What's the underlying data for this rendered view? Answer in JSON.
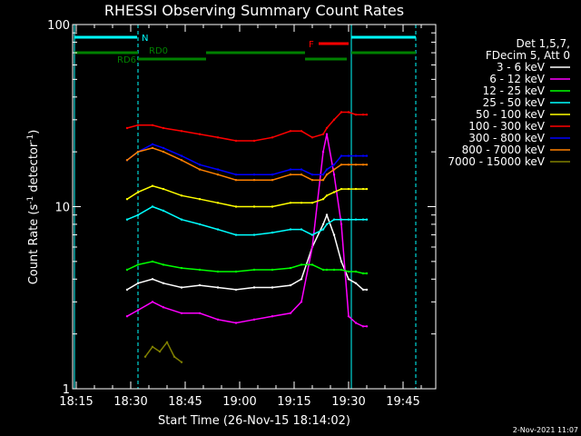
{
  "chart_data": {
    "type": "line",
    "title": "RHESSI Observing Summary Count Rates",
    "xlabel": "Start Time (26-Nov-15 18:14:02)",
    "ylabel_main": "Count Rate (s",
    "ylabel_sup1": "-1",
    "ylabel_mid": " detector",
    "ylabel_sup2": "-1",
    "ylabel_end": ")",
    "x_ticks": [
      "18:15",
      "18:30",
      "18:45",
      "19:00",
      "19:15",
      "19:30",
      "19:45"
    ],
    "x_tick_minutes": [
      1,
      16,
      31,
      46,
      61,
      76,
      91
    ],
    "xlim_minutes": [
      0,
      100
    ],
    "y_scale": "log",
    "ylim": [
      1,
      100
    ],
    "y_ticks": [
      "1",
      "10",
      "100"
    ],
    "y_tick_values": [
      1,
      10,
      100
    ],
    "legend_header": [
      "Det 1,5,7,",
      "FDecim 5, Att 0"
    ],
    "series": [
      {
        "name": "3 - 6 keV",
        "color": "#ffffff",
        "x": [
          15,
          18,
          22,
          25,
          30,
          35,
          40,
          45,
          50,
          55,
          60,
          63,
          66,
          69,
          70,
          72,
          74,
          76,
          78,
          80,
          81
        ],
        "y": [
          3.5,
          3.8,
          4.0,
          3.8,
          3.6,
          3.7,
          3.6,
          3.5,
          3.6,
          3.6,
          3.7,
          4.0,
          6.0,
          8.0,
          9.0,
          7.0,
          5.0,
          4.0,
          3.8,
          3.5,
          3.5
        ]
      },
      {
        "name": "6 - 12 keV",
        "color": "#ff00ff",
        "x": [
          15,
          18,
          22,
          25,
          30,
          35,
          40,
          45,
          50,
          55,
          60,
          63,
          66,
          69,
          70,
          72,
          74,
          76,
          78,
          80,
          81
        ],
        "y": [
          2.5,
          2.7,
          3.0,
          2.8,
          2.6,
          2.6,
          2.4,
          2.3,
          2.4,
          2.5,
          2.6,
          3.0,
          6.0,
          20.0,
          25.0,
          15.0,
          8.0,
          2.5,
          2.3,
          2.2,
          2.2
        ]
      },
      {
        "name": "12 - 25 keV",
        "color": "#00ff00",
        "x": [
          15,
          18,
          22,
          25,
          30,
          35,
          40,
          45,
          50,
          55,
          60,
          63,
          66,
          69,
          70,
          72,
          74,
          76,
          78,
          80,
          81
        ],
        "y": [
          4.5,
          4.8,
          5.0,
          4.8,
          4.6,
          4.5,
          4.4,
          4.4,
          4.5,
          4.5,
          4.6,
          4.8,
          4.8,
          4.5,
          4.5,
          4.5,
          4.5,
          4.4,
          4.4,
          4.3,
          4.3
        ]
      },
      {
        "name": "25 - 50 keV",
        "color": "#00ffff",
        "x": [
          15,
          18,
          22,
          25,
          30,
          35,
          40,
          45,
          50,
          55,
          60,
          63,
          66,
          69,
          70,
          72,
          74,
          76,
          78,
          80,
          81
        ],
        "y": [
          8.5,
          9.0,
          10.0,
          9.5,
          8.5,
          8.0,
          7.5,
          7.0,
          7.0,
          7.2,
          7.5,
          7.5,
          7.0,
          7.5,
          8.0,
          8.5,
          8.5,
          8.5,
          8.5,
          8.5,
          8.5
        ]
      },
      {
        "name": "50 - 100 keV",
        "color": "#ffff00",
        "x": [
          15,
          18,
          22,
          25,
          30,
          35,
          40,
          45,
          50,
          55,
          60,
          63,
          66,
          69,
          70,
          72,
          74,
          76,
          78,
          80,
          81
        ],
        "y": [
          11.0,
          12.0,
          13.0,
          12.5,
          11.5,
          11.0,
          10.5,
          10.0,
          10.0,
          10.0,
          10.5,
          10.5,
          10.5,
          11.0,
          11.5,
          12.0,
          12.5,
          12.5,
          12.5,
          12.5,
          12.5
        ]
      },
      {
        "name": "100 - 300 keV",
        "color": "#ff0000",
        "x": [
          15,
          18,
          22,
          25,
          30,
          35,
          40,
          45,
          50,
          55,
          60,
          63,
          66,
          69,
          70,
          72,
          74,
          76,
          78,
          80,
          81
        ],
        "y": [
          27,
          28,
          28,
          27,
          26,
          25,
          24,
          23,
          23,
          24,
          26,
          26,
          24,
          25,
          27,
          30,
          33,
          33,
          32,
          32,
          32
        ]
      },
      {
        "name": "300 - 800 keV",
        "color": "#0000ff",
        "x": [
          15,
          18,
          22,
          25,
          30,
          35,
          40,
          45,
          50,
          55,
          60,
          63,
          66,
          69,
          70,
          72,
          74,
          76,
          78,
          80,
          81
        ],
        "y": [
          18,
          20,
          22,
          21,
          19,
          17,
          16,
          15,
          15,
          15,
          16,
          16,
          15,
          15,
          16,
          17,
          19,
          19,
          19,
          19,
          19
        ]
      },
      {
        "name": "800 - 7000 keV",
        "color": "#ff8000",
        "x": [
          15,
          18,
          22,
          25,
          30,
          35,
          40,
          45,
          50,
          55,
          60,
          63,
          66,
          69,
          70,
          72,
          74,
          76,
          78,
          80,
          81
        ],
        "y": [
          18,
          20,
          21,
          20,
          18,
          16,
          15,
          14,
          14,
          14,
          15,
          15,
          14,
          14,
          15,
          16,
          17,
          17,
          17,
          17,
          17
        ]
      },
      {
        "name": "7000 - 15000 keV",
        "color": "#808000",
        "x": [
          20,
          22,
          24,
          26,
          28,
          30
        ],
        "y": [
          1.5,
          1.7,
          1.6,
          1.8,
          1.5,
          1.4
        ]
      }
    ],
    "flag_labels": {
      "n": "N",
      "rd0": "RD0",
      "rd6": "RD6",
      "f": "F"
    },
    "date_stamp": "2-Nov-2021 11:07"
  }
}
